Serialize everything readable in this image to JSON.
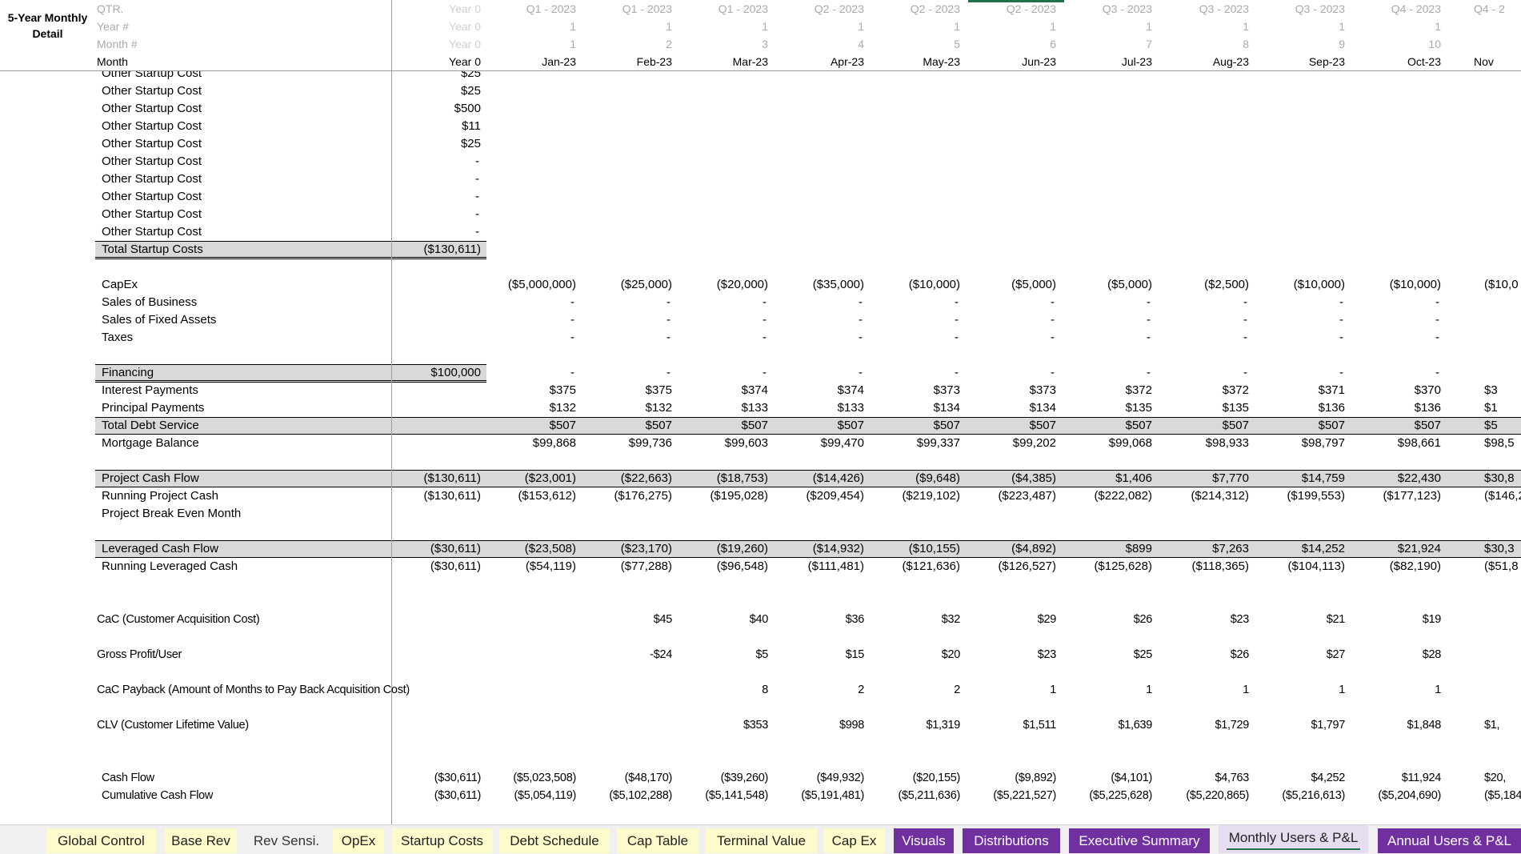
{
  "sheet": {
    "title": "5-Year Monthly Detail",
    "header_rows": [
      {
        "label": "QTR.",
        "values": [
          "Year 0",
          "Q1 - 2023",
          "Q1 - 2023",
          "Q1 - 2023",
          "Q2 - 2023",
          "Q2 - 2023",
          "Q2 - 2023",
          "Q3 - 2023",
          "Q3 - 2023",
          "Q3 - 2023",
          "Q4 - 2023",
          "Q4 - 2"
        ]
      },
      {
        "label": "Year #",
        "values": [
          "Year 0",
          "1",
          "1",
          "1",
          "1",
          "1",
          "1",
          "1",
          "1",
          "1",
          "1",
          ""
        ]
      },
      {
        "label": "Month #",
        "values": [
          "Year 0",
          "1",
          "2",
          "3",
          "4",
          "5",
          "6",
          "7",
          "8",
          "9",
          "10",
          ""
        ]
      },
      {
        "label": "Month",
        "values": [
          "Year 0",
          "Jan-23",
          "Feb-23",
          "Mar-23",
          "Apr-23",
          "May-23",
          "Jun-23",
          "Jul-23",
          "Aug-23",
          "Sep-23",
          "Oct-23",
          "Nov"
        ]
      }
    ],
    "rows": [
      {
        "label": "Other Startup Cost",
        "values": [
          "$25"
        ]
      },
      {
        "label": "Other Startup Cost",
        "values": [
          "$25"
        ]
      },
      {
        "label": "Other Startup Cost",
        "values": [
          "$500"
        ]
      },
      {
        "label": "Other Startup Cost",
        "values": [
          "$11"
        ]
      },
      {
        "label": "Other Startup Cost",
        "values": [
          "$25"
        ]
      },
      {
        "label": "Other Startup Cost",
        "values": [
          "-"
        ]
      },
      {
        "label": "Other Startup Cost",
        "values": [
          "-"
        ]
      },
      {
        "label": "Other Startup Cost",
        "values": [
          "-"
        ]
      },
      {
        "label": "Other Startup Cost",
        "values": [
          "-"
        ]
      },
      {
        "label": "Other Startup Cost",
        "values": [
          "-"
        ]
      },
      {
        "label": "Total Startup Costs",
        "kind": "subtotal",
        "values": [
          "($130,611)"
        ]
      },
      {
        "label": "",
        "values": []
      },
      {
        "label": "CapEx",
        "values": [
          "",
          "($5,000,000)",
          "($25,000)",
          "($20,000)",
          "($35,000)",
          "($10,000)",
          "($5,000)",
          "($5,000)",
          "($2,500)",
          "($10,000)",
          "($10,000)",
          "($10,0"
        ]
      },
      {
        "label": "Sales of Business",
        "values": [
          "",
          "-",
          "-",
          "-",
          "-",
          "-",
          "-",
          "-",
          "-",
          "-",
          "-",
          ""
        ]
      },
      {
        "label": "Sales of Fixed Assets",
        "values": [
          "",
          "-",
          "-",
          "-",
          "-",
          "-",
          "-",
          "-",
          "-",
          "-",
          "-",
          ""
        ]
      },
      {
        "label": "Taxes",
        "values": [
          "",
          "-",
          "-",
          "-",
          "-",
          "-",
          "-",
          "-",
          "-",
          "-",
          "-",
          ""
        ]
      },
      {
        "label": "",
        "values": []
      },
      {
        "label": "Financing",
        "kind": "subtotal",
        "values": [
          "$100,000",
          "-",
          "-",
          "-",
          "-",
          "-",
          "-",
          "-",
          "-",
          "-",
          "-",
          ""
        ]
      },
      {
        "label": "Interest Payments",
        "values": [
          "",
          "$375",
          "$375",
          "$374",
          "$374",
          "$373",
          "$373",
          "$372",
          "$372",
          "$371",
          "$370",
          "$3"
        ]
      },
      {
        "label": "Principal Payments",
        "values": [
          "",
          "$132",
          "$132",
          "$133",
          "$133",
          "$134",
          "$134",
          "$135",
          "$135",
          "$136",
          "$136",
          "$1"
        ]
      },
      {
        "label": "Total Debt Service",
        "kind": "total",
        "values": [
          "",
          "$507",
          "$507",
          "$507",
          "$507",
          "$507",
          "$507",
          "$507",
          "$507",
          "$507",
          "$507",
          "$5"
        ]
      },
      {
        "label": "Mortgage Balance",
        "values": [
          "",
          "$99,868",
          "$99,736",
          "$99,603",
          "$99,470",
          "$99,337",
          "$99,202",
          "$99,068",
          "$98,933",
          "$98,797",
          "$98,661",
          "$98,5"
        ]
      },
      {
        "label": "",
        "values": []
      },
      {
        "label": "Project Cash Flow",
        "kind": "total",
        "values": [
          "($130,611)",
          "($23,001)",
          "($22,663)",
          "($18,753)",
          "($14,426)",
          "($9,648)",
          "($4,385)",
          "$1,406",
          "$7,770",
          "$14,759",
          "$22,430",
          "$30,8"
        ]
      },
      {
        "label": "Running Project Cash",
        "values": [
          "($130,611)",
          "($153,612)",
          "($176,275)",
          "($195,028)",
          "($209,454)",
          "($219,102)",
          "($223,487)",
          "($222,082)",
          "($214,312)",
          "($199,553)",
          "($177,123)",
          "($146,2"
        ]
      },
      {
        "label": "Project Break Even Month",
        "values": []
      },
      {
        "label": "",
        "values": []
      },
      {
        "label": "Leveraged Cash Flow",
        "kind": "total",
        "values": [
          "($30,611)",
          "($23,508)",
          "($23,170)",
          "($19,260)",
          "($14,932)",
          "($10,155)",
          "($4,892)",
          "$899",
          "$7,263",
          "$14,252",
          "$21,924",
          "$30,3"
        ]
      },
      {
        "label": "Running Leveraged Cash",
        "values": [
          "($30,611)",
          "($54,119)",
          "($77,288)",
          "($96,548)",
          "($111,481)",
          "($121,636)",
          "($126,527)",
          "($125,628)",
          "($118,365)",
          "($104,113)",
          "($82,190)",
          "($51,8"
        ]
      },
      {
        "label": "",
        "values": []
      },
      {
        "label": "",
        "values": []
      },
      {
        "label": "CaC (Customer Acquisition Cost)",
        "kind": "metric",
        "values": [
          "",
          "",
          "$45",
          "$40",
          "$36",
          "$32",
          "$29",
          "$26",
          "$23",
          "$21",
          "$19",
          ""
        ]
      },
      {
        "label": "",
        "values": []
      },
      {
        "label": "Gross Profit/User",
        "kind": "metric",
        "values": [
          "",
          "",
          "-$24",
          "$5",
          "$15",
          "$20",
          "$23",
          "$25",
          "$26",
          "$27",
          "$28",
          ""
        ]
      },
      {
        "label": "",
        "values": []
      },
      {
        "label": "CaC Payback (Amount of Months to Pay Back Acquisition Cost)",
        "kind": "metric",
        "values": [
          "",
          "",
          "",
          "8",
          "2",
          "2",
          "1",
          "1",
          "1",
          "1",
          "1",
          ""
        ]
      },
      {
        "label": "",
        "values": []
      },
      {
        "label": "CLV (Customer Lifetime Value)",
        "kind": "metric",
        "values": [
          "",
          "",
          "",
          "$353",
          "$998",
          "$1,319",
          "$1,511",
          "$1,639",
          "$1,729",
          "$1,797",
          "$1,848",
          "$1,"
        ]
      },
      {
        "label": "",
        "values": []
      },
      {
        "label": "",
        "values": []
      },
      {
        "label": "Cash Flow",
        "kind": "cash",
        "values": [
          "($30,611)",
          "($5,023,508)",
          "($48,170)",
          "($39,260)",
          "($49,932)",
          "($20,155)",
          "($9,892)",
          "($4,101)",
          "$4,763",
          "$4,252",
          "$11,924",
          "$20,"
        ]
      },
      {
        "label": "Cumulative Cash Flow",
        "kind": "cash",
        "values": [
          "($30,611)",
          "($5,054,119)",
          "($5,102,288)",
          "($5,141,548)",
          "($5,191,481)",
          "($5,211,636)",
          "($5,221,527)",
          "($5,225,628)",
          "($5,220,865)",
          "($5,216,613)",
          "($5,204,690)",
          "($5,184,"
        ]
      }
    ]
  },
  "tabs": [
    {
      "label": "Global Control",
      "color": "yellow"
    },
    {
      "label": "Base Rev",
      "color": "yellow"
    },
    {
      "label": "Rev Sensi.",
      "color": "plain"
    },
    {
      "label": "OpEx",
      "color": "yellow"
    },
    {
      "label": "Startup Costs",
      "color": "yellow"
    },
    {
      "label": "Debt Schedule",
      "color": "yellow"
    },
    {
      "label": "Cap Table",
      "color": "yellow"
    },
    {
      "label": "Terminal Value",
      "color": "yellow"
    },
    {
      "label": "Cap Ex",
      "color": "yellow"
    },
    {
      "label": "Visuals",
      "color": "purple"
    },
    {
      "label": "Distributions",
      "color": "purple"
    },
    {
      "label": "Executive Summary",
      "color": "purple"
    },
    {
      "label": "Monthly Users & P&L",
      "color": "active"
    },
    {
      "label": "Annual Users & P&L",
      "color": "purple"
    }
  ],
  "colors": {
    "tab_yellow": "#fdfacc",
    "tab_purple": "#7030a0",
    "selection_green": "#217346",
    "band_gray": "#d9d9d9"
  }
}
